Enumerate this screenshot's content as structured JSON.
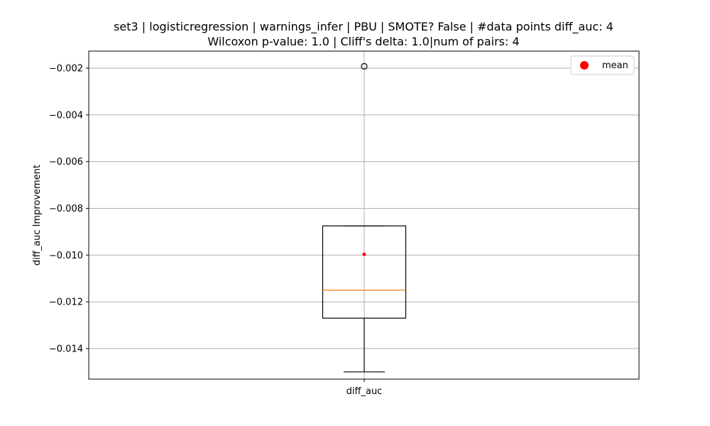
{
  "chart_data": {
    "type": "box",
    "title_line1": "set3 | logisticregression | warnings_infer | PBU | SMOTE? False | #data points diff_auc: 4",
    "title_line2": "Wilcoxon p-value: 1.0 | Cliff's delta: 1.0|num of pairs: 4",
    "xlabel": "",
    "ylabel": "diff_auc Improvement",
    "categories": [
      "diff_auc"
    ],
    "ylim": [
      -0.01531,
      -0.00127
    ],
    "yticks": [
      -0.002,
      -0.004,
      -0.006,
      -0.008,
      -0.01,
      -0.012,
      -0.014
    ],
    "ytick_labels": [
      "−0.002",
      "−0.004",
      "−0.006",
      "−0.008",
      "−0.010",
      "−0.012",
      "−0.014"
    ],
    "grid": true,
    "legend": {
      "placement": "top-right",
      "entries": [
        {
          "label": "mean",
          "marker": "red-circle"
        }
      ]
    },
    "box": {
      "whisker_low": -0.015,
      "q1": -0.0127,
      "median": -0.0115,
      "q3": -0.00875,
      "whisker_high": -0.00875,
      "mean": -0.00997,
      "outliers": [
        -0.00192
      ]
    },
    "colors": {
      "box": "#000000",
      "median": "#ff7f0e",
      "mean": "#ff0000",
      "grid": "#b0b0b0"
    }
  }
}
